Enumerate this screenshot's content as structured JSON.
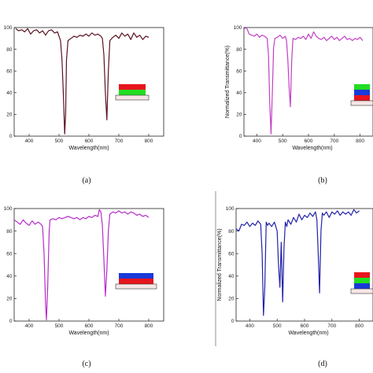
{
  "captions": [
    "(a)",
    "(b)",
    "(c)",
    "(d)"
  ],
  "colors": {
    "a": "#5a1220",
    "b": "#c23fc4",
    "c": "#b52ec8",
    "d": "#2222aa",
    "red": "#e8141c",
    "green": "#22dd22",
    "blue": "#1a3ad8",
    "substrate": "#f6e6e6"
  },
  "chart_data": [
    {
      "type": "line",
      "panel": "a",
      "xlabel": "Wavelength(nm)",
      "ylabel": "",
      "xlim": [
        350,
        850
      ],
      "ylim": [
        0,
        100
      ],
      "xticks": [
        "400",
        "500",
        "600",
        "700",
        "800"
      ],
      "yticks": [
        "0",
        "20",
        "40",
        "60",
        "80",
        "100"
      ],
      "series": [
        {
          "x": [
            355,
            365,
            375,
            385,
            395,
            405,
            415,
            425,
            435,
            445,
            455,
            465,
            475,
            485,
            495,
            505,
            510,
            515,
            519,
            522,
            525,
            530,
            540,
            550,
            560,
            570,
            580,
            590,
            600,
            610,
            620,
            630,
            640,
            645,
            650,
            655,
            660,
            665,
            670,
            680,
            690,
            700,
            710,
            720,
            730,
            740,
            750,
            760,
            770,
            780,
            790,
            800
          ],
          "y": [
            99,
            97,
            98,
            96,
            99,
            94,
            97,
            98,
            95,
            97,
            93,
            97,
            98,
            95,
            96,
            88,
            70,
            35,
            2,
            20,
            70,
            88,
            90,
            92,
            91,
            93,
            92,
            94,
            92,
            95,
            93,
            94,
            92,
            90,
            75,
            40,
            15,
            60,
            88,
            91,
            93,
            90,
            95,
            92,
            94,
            89,
            95,
            91,
            93,
            89,
            92,
            91
          ]
        }
      ],
      "stack": [
        "red",
        "green"
      ]
    },
    {
      "type": "line",
      "panel": "b",
      "xlabel": "Wavelength(nm)",
      "ylabel": "Normalized Transmittance(%)",
      "xlim": [
        350,
        850
      ],
      "ylim": [
        0,
        100
      ],
      "xticks": [
        "400",
        "500",
        "600",
        "700",
        "800"
      ],
      "yticks": [
        "0",
        "20",
        "40",
        "60",
        "80",
        "100"
      ],
      "series": [
        {
          "x": [
            350,
            360,
            370,
            380,
            390,
            400,
            410,
            420,
            430,
            440,
            445,
            450,
            455,
            460,
            465,
            470,
            480,
            490,
            500,
            510,
            515,
            520,
            525,
            530,
            535,
            540,
            550,
            560,
            570,
            580,
            590,
            600,
            610,
            620,
            630,
            640,
            650,
            660,
            670,
            680,
            690,
            700,
            710,
            720,
            730,
            740,
            750,
            760,
            770,
            780,
            790,
            800,
            810
          ],
          "y": [
            99,
            100,
            94,
            93,
            92,
            94,
            91,
            93,
            92,
            90,
            75,
            30,
            2,
            40,
            82,
            90,
            91,
            93,
            90,
            92,
            88,
            70,
            45,
            27,
            70,
            90,
            89,
            91,
            90,
            92,
            89,
            94,
            90,
            96,
            92,
            90,
            89,
            91,
            88,
            90,
            92,
            89,
            91,
            88,
            90,
            92,
            89,
            90,
            88,
            90,
            89,
            91,
            88
          ]
        }
      ],
      "stack": [
        "green",
        "blue",
        "red"
      ]
    },
    {
      "type": "line",
      "panel": "c",
      "xlabel": "Wavelength(nm)",
      "ylabel": "",
      "xlim": [
        350,
        850
      ],
      "ylim": [
        0,
        100
      ],
      "xticks": [
        "400",
        "500",
        "600",
        "700",
        "800"
      ],
      "yticks": [
        "0",
        "20",
        "40",
        "60",
        "80",
        "100"
      ],
      "series": [
        {
          "x": [
            350,
            360,
            370,
            380,
            390,
            400,
            410,
            420,
            430,
            440,
            445,
            450,
            455,
            458,
            462,
            467,
            470,
            480,
            490,
            500,
            510,
            520,
            530,
            540,
            550,
            560,
            570,
            580,
            590,
            600,
            610,
            620,
            630,
            635,
            640,
            645,
            650,
            655,
            660,
            665,
            670,
            680,
            690,
            700,
            710,
            720,
            730,
            740,
            750,
            760,
            770,
            780,
            790,
            800
          ],
          "y": [
            90,
            88,
            86,
            90,
            87,
            85,
            89,
            86,
            88,
            86,
            84,
            60,
            15,
            1,
            30,
            80,
            90,
            91,
            90,
            92,
            91,
            92,
            93,
            92,
            91,
            92,
            90,
            92,
            91,
            93,
            92,
            94,
            93,
            99,
            97,
            85,
            55,
            22,
            45,
            80,
            95,
            97,
            96,
            98,
            96,
            97,
            95,
            97,
            96,
            94,
            95,
            93,
            94,
            92
          ]
        }
      ],
      "stack": [
        "blue",
        "red"
      ]
    },
    {
      "type": "line",
      "panel": "d",
      "xlabel": "Wavelength(nm)",
      "ylabel": "Normalized Transmittance(%)",
      "xlim": [
        350,
        850
      ],
      "ylim": [
        0,
        100
      ],
      "xticks": [
        "400",
        "500",
        "600",
        "700",
        "800"
      ],
      "yticks": [
        "0",
        "20",
        "40",
        "60",
        "80",
        "100"
      ],
      "series": [
        {
          "x": [
            350,
            360,
            370,
            380,
            390,
            400,
            410,
            420,
            430,
            440,
            445,
            450,
            455,
            460,
            465,
            470,
            480,
            490,
            500,
            505,
            510,
            515,
            520,
            525,
            530,
            535,
            540,
            550,
            560,
            570,
            580,
            590,
            600,
            610,
            620,
            630,
            640,
            645,
            650,
            655,
            660,
            665,
            670,
            680,
            690,
            700,
            710,
            720,
            730,
            740,
            750,
            760,
            770,
            780,
            790,
            800
          ],
          "y": [
            82,
            80,
            86,
            85,
            88,
            84,
            87,
            85,
            89,
            86,
            60,
            5,
            30,
            88,
            85,
            87,
            84,
            88,
            80,
            50,
            30,
            70,
            17,
            65,
            88,
            84,
            90,
            86,
            92,
            88,
            95,
            90,
            94,
            92,
            96,
            93,
            97,
            90,
            60,
            25,
            80,
            96,
            94,
            97,
            92,
            97,
            95,
            98,
            94,
            97,
            95,
            97,
            94,
            99,
            96,
            98
          ]
        }
      ],
      "stack": [
        "red",
        "green",
        "blue"
      ]
    }
  ]
}
